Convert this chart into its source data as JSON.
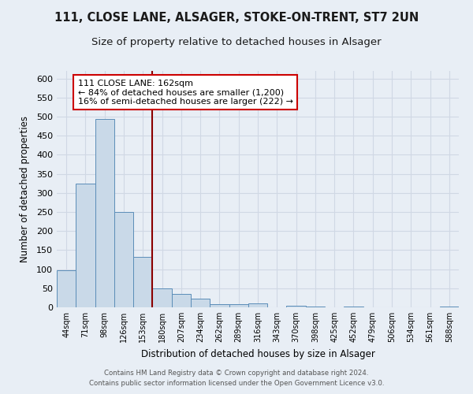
{
  "title1": "111, CLOSE LANE, ALSAGER, STOKE-ON-TRENT, ST7 2UN",
  "title2": "Size of property relative to detached houses in Alsager",
  "xlabel": "Distribution of detached houses by size in Alsager",
  "ylabel": "Number of detached properties",
  "bar_labels": [
    "44sqm",
    "71sqm",
    "98sqm",
    "126sqm",
    "153sqm",
    "180sqm",
    "207sqm",
    "234sqm",
    "262sqm",
    "289sqm",
    "316sqm",
    "343sqm",
    "370sqm",
    "398sqm",
    "425sqm",
    "452sqm",
    "479sqm",
    "506sqm",
    "534sqm",
    "561sqm",
    "588sqm"
  ],
  "bar_values": [
    97,
    325,
    493,
    250,
    133,
    50,
    35,
    22,
    8,
    8,
    10,
    0,
    5,
    3,
    0,
    3,
    0,
    1,
    0,
    0,
    2
  ],
  "bar_color": "#c9d9e8",
  "bar_edge_color": "#5b8db8",
  "vline_x": 4.5,
  "vline_color": "#8b0000",
  "ylim": [
    0,
    620
  ],
  "yticks": [
    0,
    50,
    100,
    150,
    200,
    250,
    300,
    350,
    400,
    450,
    500,
    550,
    600
  ],
  "annotation_title": "111 CLOSE LANE: 162sqm",
  "annotation_line1": "← 84% of detached houses are smaller (1,200)",
  "annotation_line2": "16% of semi-detached houses are larger (222) →",
  "annotation_box_color": "#ffffff",
  "annotation_box_edge": "#cc0000",
  "footer1": "Contains HM Land Registry data © Crown copyright and database right 2024.",
  "footer2": "Contains public sector information licensed under the Open Government Licence v3.0.",
  "bg_color": "#e8eef5",
  "plot_bg_color": "#e8eef5",
  "grid_color": "#d0d8e4",
  "title1_fontsize": 10.5,
  "title2_fontsize": 9.5
}
